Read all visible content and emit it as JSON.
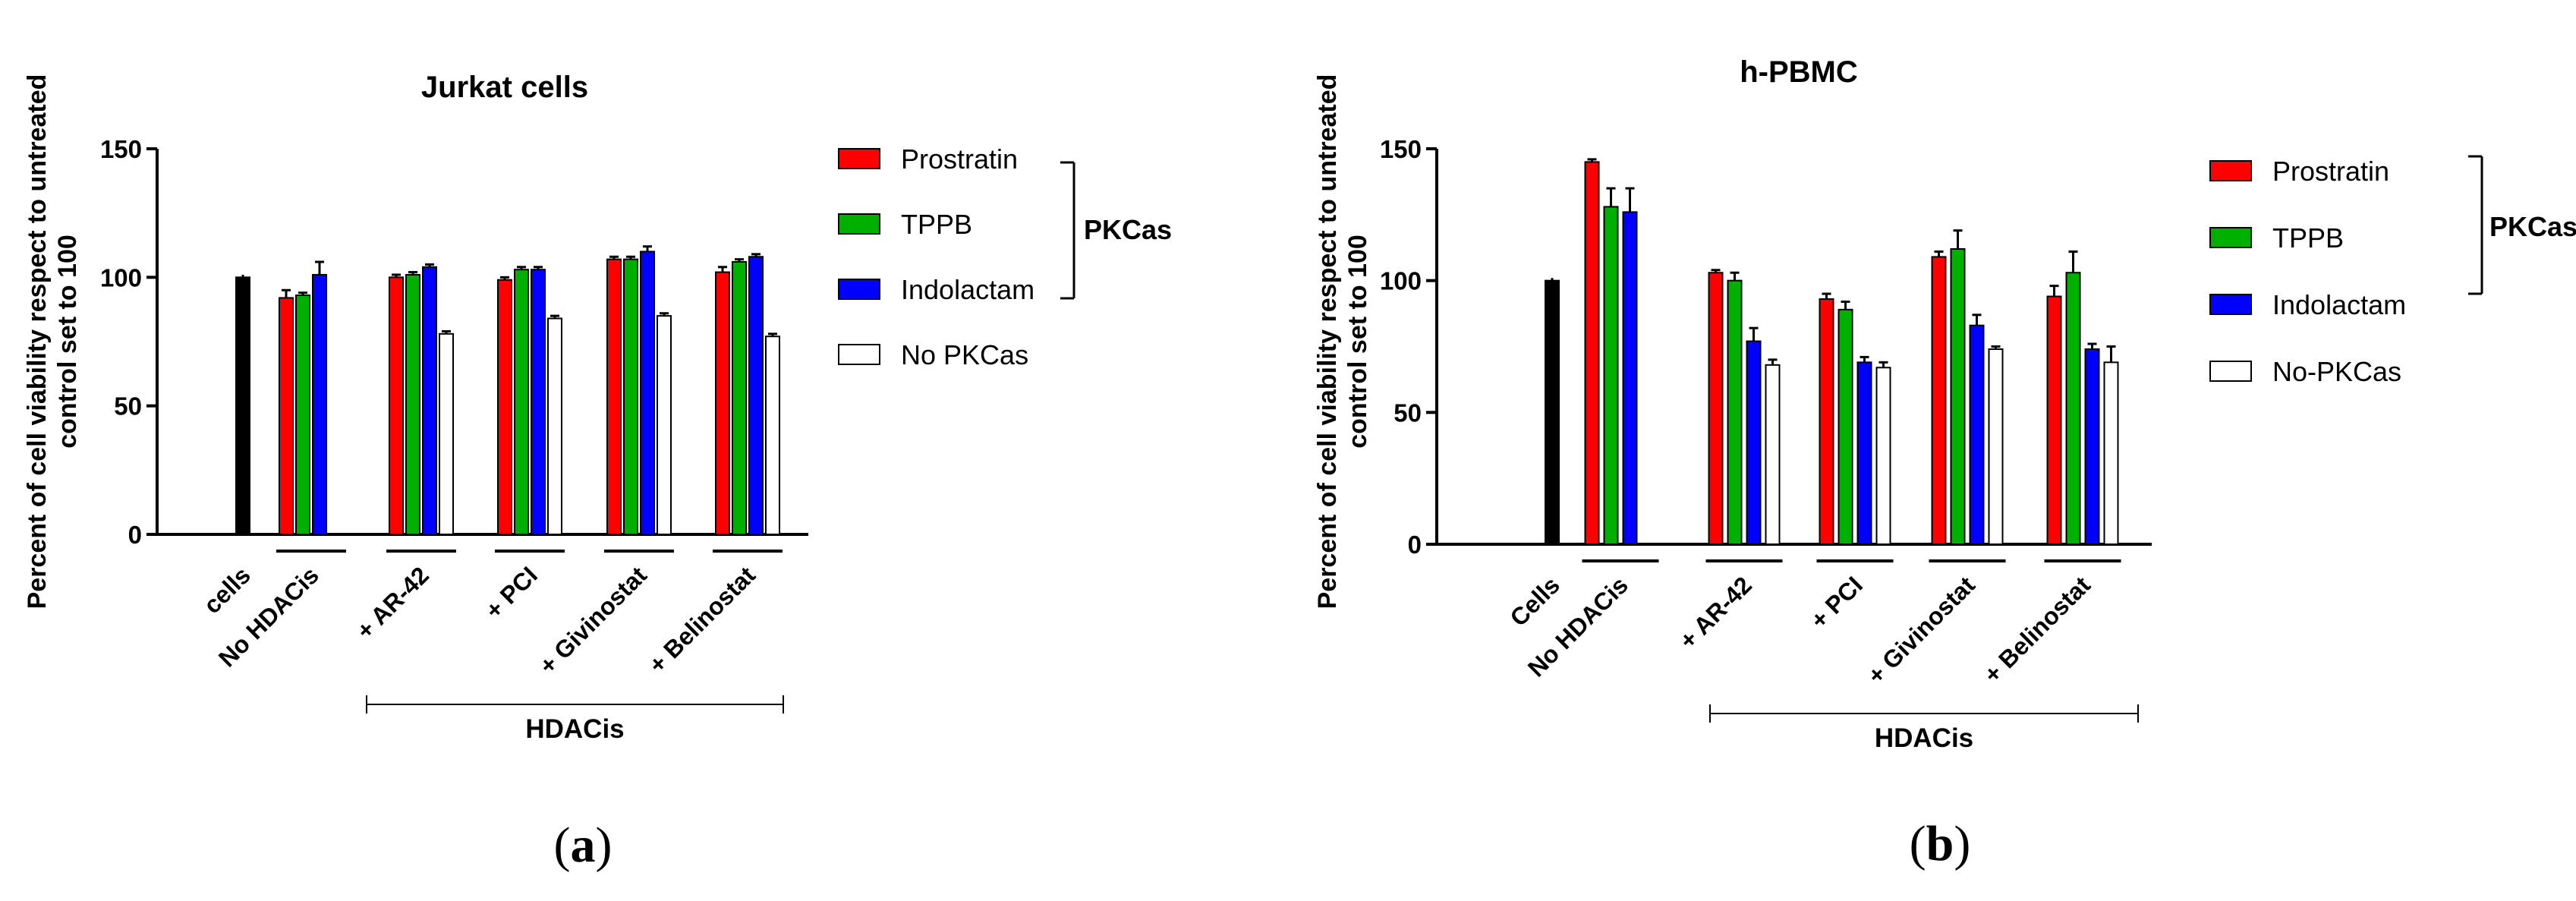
{
  "chart_data": [
    {
      "type": "bar",
      "panel": "a",
      "title": "Jurkat cells",
      "ylabel": [
        "Percent of cell viability respect to untreated",
        "control set to 100"
      ],
      "ylim": [
        0,
        150
      ],
      "yticks": [
        0,
        50,
        100,
        150
      ],
      "categories": [
        "cells",
        "No HDACis",
        "+ AR-42",
        "+ PCI",
        "+ Givinostat",
        "+ Belinostat"
      ],
      "control": {
        "name": "cells",
        "value": 100,
        "err": 1,
        "color": "#000000"
      },
      "series": [
        {
          "name": "Prostratin",
          "color": "#ff0000",
          "values": [
            null,
            92,
            100,
            99,
            107,
            102
          ],
          "errors": [
            null,
            3,
            1,
            1,
            1,
            2
          ]
        },
        {
          "name": "TPPB",
          "color": "#00b000",
          "values": [
            null,
            93,
            101,
            103,
            107,
            106
          ],
          "errors": [
            null,
            1,
            1,
            1,
            1,
            1
          ]
        },
        {
          "name": "Indolactam",
          "color": "#0000ff",
          "values": [
            null,
            101,
            104,
            103,
            110,
            108
          ],
          "errors": [
            null,
            5,
            1,
            1,
            2,
            1
          ]
        },
        {
          "name": "No PKCas",
          "color": "#ffffff",
          "values": [
            null,
            null,
            78,
            84,
            85,
            77
          ],
          "errors": [
            null,
            null,
            1,
            1,
            1,
            1
          ]
        }
      ],
      "legend_bracket": "PKCas",
      "group_label": "HDACis",
      "panel_label": "a"
    },
    {
      "type": "bar",
      "panel": "b",
      "title": "h-PBMC",
      "ylabel": [
        "Percent of cell viability respect to untreated",
        "control set to 100"
      ],
      "ylim": [
        0,
        150
      ],
      "yticks": [
        0,
        50,
        100,
        150
      ],
      "categories": [
        "Cells",
        "No HDACis",
        "+ AR-42",
        "+ PCI",
        "+ Givinostat",
        "+ Belinostat"
      ],
      "control": {
        "name": "Cells",
        "value": 100,
        "err": 1,
        "color": "#000000"
      },
      "series": [
        {
          "name": "Prostratin",
          "color": "#ff0000",
          "values": [
            null,
            145,
            103,
            93,
            109,
            94
          ],
          "errors": [
            null,
            1,
            1,
            2,
            2,
            4
          ]
        },
        {
          "name": "TPPB",
          "color": "#00b000",
          "values": [
            null,
            128,
            100,
            89,
            112,
            103
          ],
          "errors": [
            null,
            7,
            3,
            3,
            7,
            8
          ]
        },
        {
          "name": "Indolactam",
          "color": "#0000ff",
          "values": [
            null,
            126,
            77,
            69,
            83,
            74
          ],
          "errors": [
            null,
            9,
            5,
            2,
            4,
            2
          ]
        },
        {
          "name": "No-PKCas",
          "color": "#ffffff",
          "values": [
            null,
            null,
            68,
            67,
            74,
            69
          ],
          "errors": [
            null,
            null,
            2,
            2,
            1,
            6
          ]
        }
      ],
      "legend_bracket": "PKCas",
      "group_label": "HDACis",
      "panel_label": "b"
    }
  ]
}
